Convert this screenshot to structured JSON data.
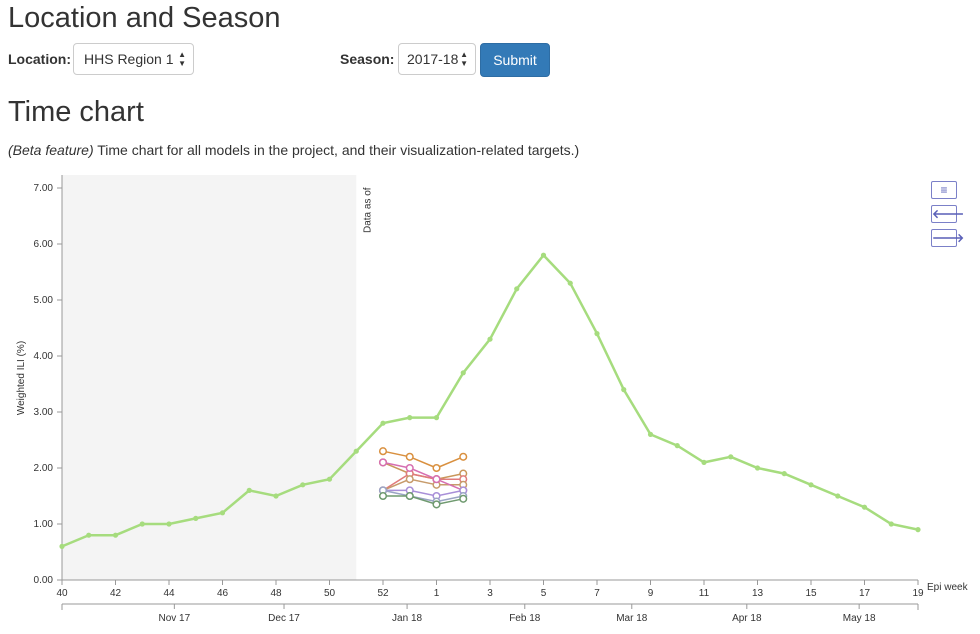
{
  "header": {
    "location_title": "Location and Season",
    "time_title": "Time chart"
  },
  "controls": {
    "location_label": "Location:",
    "location_value": "HHS Region 1",
    "season_label": "Season:",
    "season_value": "2017-18",
    "submit_label": "Submit"
  },
  "description": {
    "italic": "(Beta feature)",
    "text": " Time chart for all models in the project, and their visualization-related targets.)"
  },
  "nav": {
    "menu_icon": "menu-icon",
    "back_icon": "arrow-left-icon",
    "forward_icon": "arrow-right-icon"
  },
  "chart_data": {
    "type": "line",
    "ylabel": "Weighted ILI (%)",
    "xlabel": "Epi week",
    "ylim": [
      0,
      7.2
    ],
    "yticks": [
      "0.00",
      "1.00",
      "2.00",
      "3.00",
      "4.00",
      "5.00",
      "6.00",
      "7.00"
    ],
    "xticks": [
      "40",
      "42",
      "44",
      "46",
      "48",
      "50",
      "52",
      "1",
      "3",
      "5",
      "7",
      "9",
      "11",
      "13",
      "15",
      "17",
      "19"
    ],
    "month_ticks": [
      "Nov 17",
      "Dec 17",
      "Jan 18",
      "Feb 18",
      "Mar 18",
      "Apr 18",
      "May 18"
    ],
    "data_as_of_label": "Data as of",
    "weeks": [
      "40",
      "41",
      "42",
      "43",
      "44",
      "45",
      "46",
      "47",
      "48",
      "49",
      "50",
      "51",
      "52",
      "53/1",
      "1",
      "2",
      "3",
      "4",
      "5",
      "6",
      "7",
      "8",
      "9",
      "10",
      "11",
      "12",
      "13",
      "14",
      "15",
      "16",
      "17",
      "18",
      "19"
    ],
    "series": [
      {
        "values": [
          0.6,
          0.8,
          0.8,
          1.0,
          1.0,
          1.1,
          1.2,
          1.6,
          1.5,
          1.7,
          1.8,
          2.3,
          2.8,
          2.9,
          2.9,
          3.7,
          4.3,
          5.2,
          5.8,
          5.3,
          4.4,
          3.4,
          2.6,
          2.4,
          2.1,
          2.2,
          2.0,
          1.9,
          1.7,
          1.5,
          1.3,
          1.0,
          0.9
        ]
      },
      {
        "forecast_weeks": [
          "52",
          "53/1",
          "1",
          "2"
        ],
        "values": [
          2.3,
          2.2,
          2.0,
          2.2
        ]
      },
      {
        "forecast_weeks": [
          "52",
          "53/1",
          "1",
          "2"
        ],
        "values": [
          2.1,
          1.9,
          1.8,
          1.9
        ]
      },
      {
        "forecast_weeks": [
          "52",
          "53/1",
          "1",
          "2"
        ],
        "values": [
          1.6,
          1.9,
          1.8,
          1.8
        ]
      },
      {
        "forecast_weeks": [
          "52",
          "53/1",
          "1",
          "2"
        ],
        "values": [
          1.6,
          1.8,
          1.7,
          1.7
        ]
      },
      {
        "forecast_weeks": [
          "52",
          "53/1",
          "1",
          "2"
        ],
        "values": [
          2.1,
          2.0,
          1.8,
          1.6
        ]
      },
      {
        "forecast_weeks": [
          "52",
          "53/1",
          "1",
          "2"
        ],
        "values": [
          1.6,
          1.6,
          1.5,
          1.6
        ]
      },
      {
        "forecast_weeks": [
          "52",
          "53/1",
          "1",
          "2"
        ],
        "values": [
          1.6,
          1.5,
          1.4,
          1.5
        ]
      },
      {
        "forecast_weeks": [
          "52",
          "53/1",
          "1",
          "2"
        ],
        "values": [
          1.5,
          1.5,
          1.35,
          1.45
        ]
      }
    ],
    "colors": {
      "actual": "#a6dc7e",
      "forecasts": [
        "#d9903f",
        "#c9975b",
        "#e07b7b",
        "#c79b6b",
        "#d66fb1",
        "#a88fd8",
        "#9aa5c4",
        "#6f9a6f"
      ]
    }
  }
}
